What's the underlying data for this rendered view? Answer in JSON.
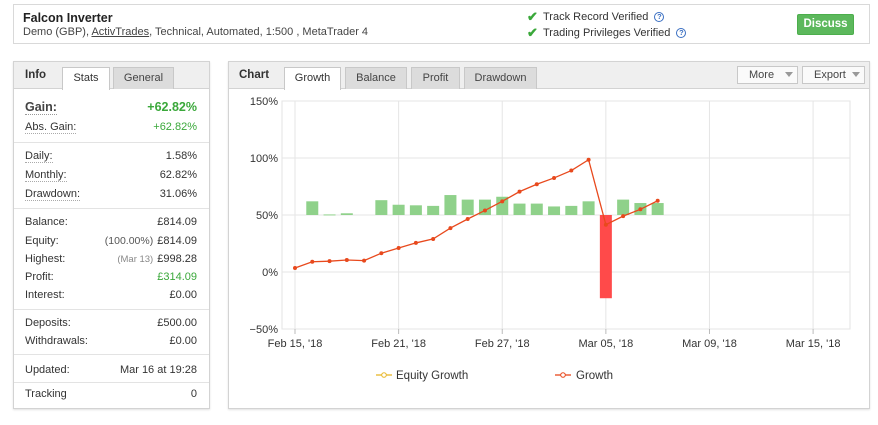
{
  "header": {
    "title": "Falcon Inverter",
    "subtitle_pre": "Demo (GBP), ",
    "broker": "ActivTrades",
    "subtitle_post": ", Technical, Automated, 1:500 , MetaTrader 4",
    "verif1": "Track Record Verified",
    "verif2": "Trading Privileges Verified",
    "help_glyph": "?",
    "discuss": "Discuss"
  },
  "info": {
    "title": "Info",
    "tabs": [
      "Stats",
      "General"
    ],
    "gain_label": "Gain:",
    "gain_value": "+62.82%",
    "abs_gain_label": "Abs. Gain:",
    "abs_gain_value": "+62.82%",
    "daily_label": "Daily:",
    "daily_value": "1.58%",
    "monthly_label": "Monthly:",
    "monthly_value": "62.82%",
    "drawdown_label": "Drawdown:",
    "drawdown_value": "31.06%",
    "balance_label": "Balance:",
    "balance_value": "£814.09",
    "equity_label": "Equity:",
    "equity_pct": "(100.00%)",
    "equity_value": "£814.09",
    "highest_label": "Highest:",
    "highest_date": "(Mar 13)",
    "highest_value": "£998.28",
    "profit_label": "Profit:",
    "profit_value": "£314.09",
    "interest_label": "Interest:",
    "interest_value": "£0.00",
    "deposits_label": "Deposits:",
    "deposits_value": "£500.00",
    "withdrawals_label": "Withdrawals:",
    "withdrawals_value": "£0.00",
    "updated_label": "Updated:",
    "updated_value": "Mar 16 at 19:28",
    "tracking_label": "Tracking",
    "tracking_value": "0"
  },
  "chart_panel": {
    "title": "Chart",
    "tabs": [
      "Growth",
      "Balance",
      "Profit",
      "Drawdown"
    ],
    "more": "More",
    "export": "Export"
  },
  "chart_data": {
    "type": "line",
    "x_ticks": [
      "Feb 15, '18",
      "Feb 21, '18",
      "Feb 27, '18",
      "Mar 05, '18",
      "Mar 09, '18",
      "Mar 15, '18"
    ],
    "y_ticks": [
      "150%",
      "100%",
      "50%",
      "0%",
      "−50%"
    ],
    "ylim": [
      -50,
      150
    ],
    "colors": {
      "growth": "#e8491d",
      "equity": "#e8b72a",
      "bar_pos": "#8fd18a",
      "bar_neg": "#ff4a4a"
    },
    "legend": [
      "Equity Growth",
      "Growth"
    ],
    "growth": [
      {
        "d": 0,
        "y": 3.5
      },
      {
        "d": 1,
        "y": 9
      },
      {
        "d": 2,
        "y": 9.5
      },
      {
        "d": 3,
        "y": 10.5
      },
      {
        "d": 4,
        "y": 10
      },
      {
        "d": 5,
        "y": 16.5
      },
      {
        "d": 6,
        "y": 21
      },
      {
        "d": 7,
        "y": 25.5
      },
      {
        "d": 8,
        "y": 29
      },
      {
        "d": 9,
        "y": 38.5
      },
      {
        "d": 10,
        "y": 46.5
      },
      {
        "d": 11,
        "y": 54
      },
      {
        "d": 12,
        "y": 62
      },
      {
        "d": 13,
        "y": 70.5
      },
      {
        "d": 14,
        "y": 77
      },
      {
        "d": 15,
        "y": 82.5
      },
      {
        "d": 16,
        "y": 89
      },
      {
        "d": 17,
        "y": 98.5
      },
      {
        "d": 18,
        "y": 41.5
      },
      {
        "d": 19,
        "y": 49
      },
      {
        "d": 20,
        "y": 55
      },
      {
        "d": 21,
        "y": 62.5
      }
    ],
    "bars": [
      {
        "d": 1,
        "v": 12
      },
      {
        "d": 2,
        "v": 0.5
      },
      {
        "d": 3,
        "v": 1.5
      },
      {
        "d": 5,
        "v": 13
      },
      {
        "d": 6,
        "v": 9
      },
      {
        "d": 7,
        "v": 8.5
      },
      {
        "d": 8,
        "v": 8
      },
      {
        "d": 9,
        "v": 17.5
      },
      {
        "d": 10,
        "v": 13.5
      },
      {
        "d": 11,
        "v": 13.5
      },
      {
        "d": 12,
        "v": 16
      },
      {
        "d": 13,
        "v": 10
      },
      {
        "d": 14,
        "v": 10
      },
      {
        "d": 15,
        "v": 7.5
      },
      {
        "d": 16,
        "v": 8
      },
      {
        "d": 17,
        "v": 12
      },
      {
        "d": 18,
        "v": -73
      },
      {
        "d": 19,
        "v": 13.5
      },
      {
        "d": 20,
        "v": 10.5
      },
      {
        "d": 21,
        "v": 10.5
      }
    ]
  }
}
